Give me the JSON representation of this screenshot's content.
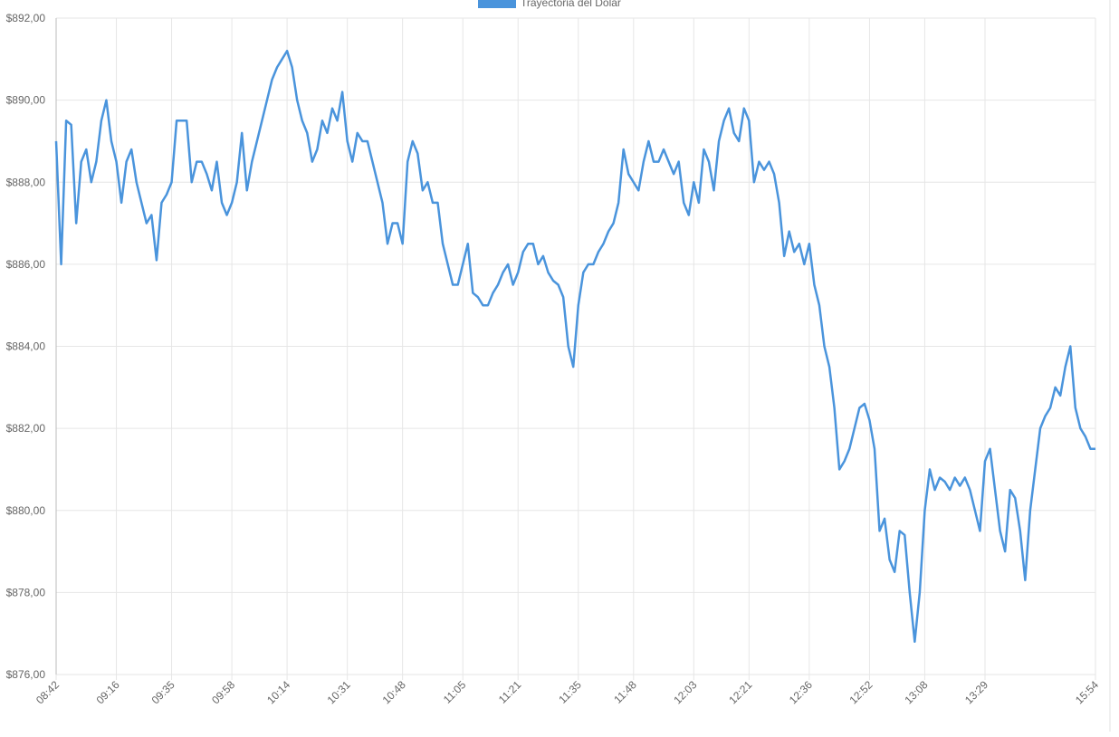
{
  "chart_data": {
    "type": "line",
    "legend": "top",
    "grid": true,
    "categories": [
      "08:42",
      null,
      null,
      null,
      null,
      null,
      null,
      null,
      null,
      null,
      null,
      null,
      "09:16",
      null,
      null,
      null,
      null,
      null,
      null,
      null,
      null,
      null,
      null,
      "09:35",
      null,
      null,
      null,
      null,
      null,
      null,
      null,
      null,
      null,
      null,
      null,
      "09:58",
      null,
      null,
      null,
      null,
      null,
      null,
      null,
      null,
      null,
      null,
      "10:14",
      null,
      null,
      null,
      null,
      null,
      null,
      null,
      null,
      null,
      null,
      null,
      "10:31",
      null,
      null,
      null,
      null,
      null,
      null,
      null,
      null,
      null,
      null,
      "10:48",
      null,
      null,
      null,
      null,
      null,
      null,
      null,
      null,
      null,
      null,
      null,
      "11:05",
      null,
      null,
      null,
      null,
      null,
      null,
      null,
      null,
      null,
      null,
      "11:21",
      null,
      null,
      null,
      null,
      null,
      null,
      null,
      null,
      null,
      null,
      null,
      "11:35",
      null,
      null,
      null,
      null,
      null,
      null,
      null,
      null,
      null,
      null,
      "11:48",
      null,
      null,
      null,
      null,
      null,
      null,
      null,
      null,
      null,
      null,
      null,
      "12:03",
      null,
      null,
      null,
      null,
      null,
      null,
      null,
      null,
      null,
      null,
      "12:21",
      null,
      null,
      null,
      null,
      null,
      null,
      null,
      null,
      null,
      null,
      null,
      "12:36",
      null,
      null,
      null,
      null,
      null,
      null,
      null,
      null,
      null,
      null,
      null,
      "12:52",
      null,
      null,
      null,
      null,
      null,
      null,
      null,
      null,
      null,
      null,
      "13:08",
      null,
      null,
      null,
      null,
      null,
      null,
      null,
      null,
      null,
      null,
      null,
      "13:29",
      null,
      null,
      null,
      null,
      null,
      null,
      null,
      null,
      null,
      null,
      null,
      null,
      null,
      null,
      null,
      null,
      null,
      null,
      null,
      null,
      null,
      "15:54"
    ],
    "series": [
      {
        "name": "Trayectoria del Dolar",
        "color": "#4a94dc",
        "values": [
          889,
          886,
          889.5,
          889.4,
          887,
          888.5,
          888.8,
          888,
          888.5,
          889.5,
          890,
          889,
          888.5,
          887.5,
          888.5,
          888.8,
          888,
          887.5,
          887,
          887.2,
          886.1,
          887.5,
          887.7,
          888,
          889.5,
          889.5,
          889.5,
          888,
          888.5,
          888.5,
          888.2,
          887.8,
          888.5,
          887.5,
          887.2,
          887.5,
          888,
          889.2,
          887.8,
          888.5,
          889,
          889.5,
          890,
          890.5,
          890.8,
          891,
          891.2,
          890.8,
          890,
          889.5,
          889.2,
          888.5,
          888.8,
          889.5,
          889.2,
          889.8,
          889.5,
          890.2,
          889,
          888.5,
          889.2,
          889,
          889,
          888.5,
          888,
          887.5,
          886.5,
          887,
          887,
          886.5,
          888.5,
          889,
          888.7,
          887.8,
          888,
          887.5,
          887.5,
          886.5,
          886,
          885.5,
          885.5,
          886,
          886.5,
          885.3,
          885.2,
          885,
          885,
          885.3,
          885.5,
          885.8,
          886,
          885.5,
          885.8,
          886.3,
          886.5,
          886.5,
          886,
          886.2,
          885.8,
          885.6,
          885.5,
          885.2,
          884,
          883.5,
          885,
          885.8,
          886,
          886,
          886.3,
          886.5,
          886.8,
          887,
          887.5,
          888.8,
          888.2,
          888,
          887.8,
          888.5,
          889,
          888.5,
          888.5,
          888.8,
          888.5,
          888.2,
          888.5,
          887.5,
          887.2,
          888,
          887.5,
          888.8,
          888.5,
          887.8,
          889,
          889.5,
          889.8,
          889.2,
          889,
          889.8,
          889.5,
          888,
          888.5,
          888.3,
          888.5,
          888.2,
          887.5,
          886.2,
          886.8,
          886.3,
          886.5,
          886,
          886.5,
          885.5,
          885,
          884,
          883.5,
          882.5,
          881,
          881.2,
          881.5,
          882,
          882.5,
          882.6,
          882.2,
          881.5,
          879.5,
          879.8,
          878.8,
          878.5,
          879.5,
          879.4,
          878,
          876.8,
          878,
          880,
          881,
          880.5,
          880.8,
          880.7,
          880.5,
          880.8,
          880.6,
          880.8,
          880.5,
          880,
          879.5,
          881.2,
          881.5,
          880.5,
          879.5,
          879,
          880.5,
          880.3,
          879.5,
          878.3,
          880,
          881,
          882,
          882.3,
          882.5,
          883,
          882.8,
          883.5,
          884,
          882.5,
          882,
          881.8,
          881.5,
          881.5
        ]
      }
    ],
    "ylim": [
      876,
      892
    ],
    "yticks": [
      {
        "value": 876,
        "label": "$876,00"
      },
      {
        "value": 878,
        "label": "$878,00"
      },
      {
        "value": 880,
        "label": "$880,00"
      },
      {
        "value": 882,
        "label": "$882,00"
      },
      {
        "value": 884,
        "label": "$884,00"
      },
      {
        "value": 886,
        "label": "$886,00"
      },
      {
        "value": 888,
        "label": "$888,00"
      },
      {
        "value": 890,
        "label": "$890,00"
      },
      {
        "value": 892,
        "label": "$892,00"
      }
    ]
  }
}
